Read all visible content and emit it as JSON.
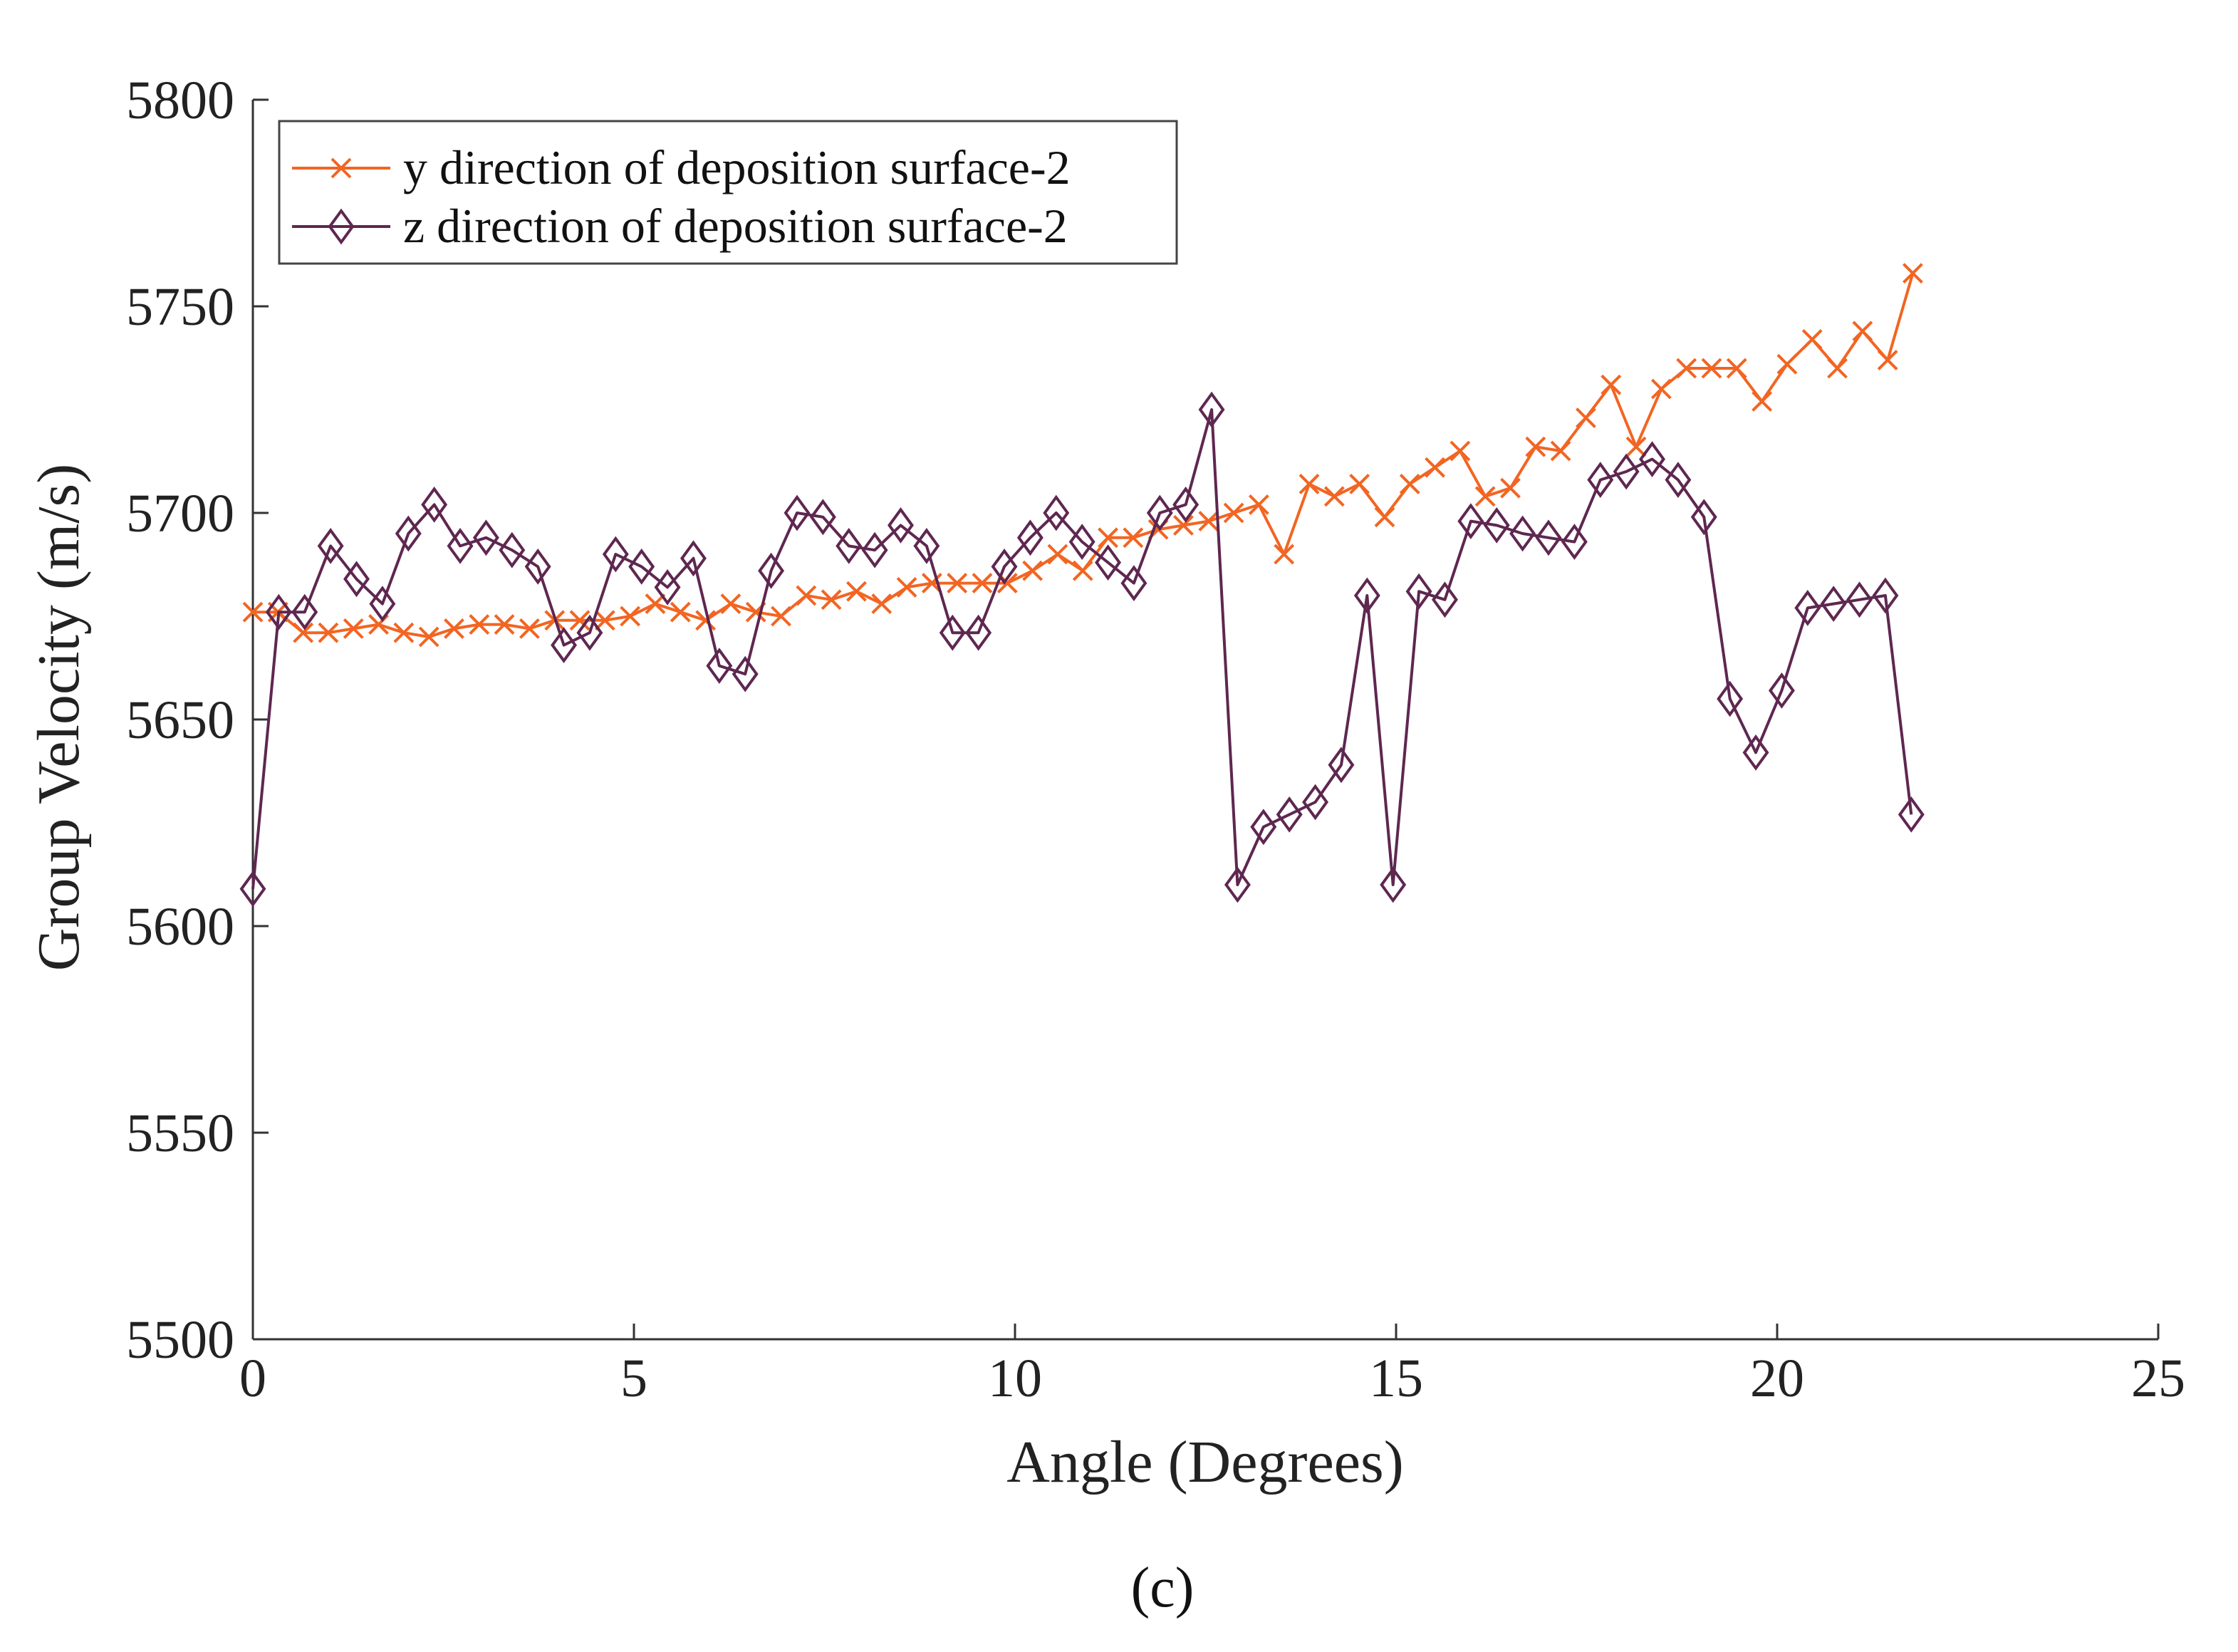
{
  "chart_data": {
    "type": "line",
    "title": "",
    "xlabel": "Angle (Degrees)",
    "ylabel": "Group Velocity (m/s)",
    "xlim": [
      0,
      25
    ],
    "ylim": [
      5500,
      5800
    ],
    "xticks": [
      0,
      5,
      10,
      15,
      20,
      25
    ],
    "yticks": [
      5500,
      5550,
      5600,
      5650,
      5700,
      5750,
      5800
    ],
    "grid": false,
    "legend_position": "top-left",
    "series": [
      {
        "name": "y direction of deposition surface-2",
        "color": "#f26522",
        "marker": "x",
        "x": [
          0,
          0.33,
          0.66,
          0.99,
          1.32,
          1.65,
          1.98,
          2.31,
          2.64,
          2.97,
          3.3,
          3.63,
          3.96,
          4.29,
          4.62,
          4.95,
          5.28,
          5.61,
          5.94,
          6.27,
          6.6,
          6.93,
          7.26,
          7.59,
          7.92,
          8.25,
          8.58,
          8.91,
          9.24,
          9.57,
          9.9,
          10.23,
          10.56,
          10.89,
          11.22,
          11.55,
          11.88,
          12.21,
          12.54,
          12.87,
          13.2,
          13.53,
          13.86,
          14.19,
          14.52,
          14.85,
          15.18,
          15.51,
          15.84,
          16.17,
          16.5,
          16.83,
          17.16,
          17.49,
          17.82,
          18.15,
          18.48,
          18.81,
          19.14,
          19.47,
          19.8,
          20.13,
          20.46,
          20.79,
          21.12,
          21.45,
          21.78
        ],
        "y": [
          5676,
          5676,
          5671,
          5671,
          5672,
          5673,
          5671,
          5670,
          5672,
          5673,
          5673,
          5672,
          5674,
          5674,
          5674,
          5675,
          5678,
          5676,
          5674,
          5678,
          5676,
          5675,
          5680,
          5679,
          5681,
          5678,
          5682,
          5683,
          5683,
          5683,
          5683,
          5686,
          5690,
          5686,
          5694,
          5694,
          5696,
          5697,
          5698,
          5700,
          5702,
          5690,
          5707,
          5704,
          5707,
          5699,
          5707,
          5711,
          5715,
          5704,
          5706,
          5716,
          5715,
          5723,
          5731,
          5716,
          5730,
          5735,
          5735,
          5735,
          5727,
          5736,
          5742,
          5735,
          5744,
          5737,
          5758
        ]
      },
      {
        "name": "z direction of deposition surface-2",
        "color": "#5e2750",
        "marker": "diamond",
        "x": [
          0,
          0.34,
          0.68,
          1.02,
          1.36,
          1.7,
          2.04,
          2.38,
          2.72,
          3.06,
          3.4,
          3.74,
          4.08,
          4.42,
          4.76,
          5.1,
          5.44,
          5.78,
          6.12,
          6.46,
          6.8,
          7.14,
          7.48,
          7.82,
          8.16,
          8.5,
          8.84,
          9.18,
          9.52,
          9.86,
          10.2,
          10.54,
          10.88,
          11.22,
          11.56,
          11.9,
          12.24,
          12.58,
          12.92,
          13.26,
          13.6,
          13.94,
          14.28,
          14.62,
          14.96,
          15.3,
          15.64,
          15.98,
          16.32,
          16.66,
          17.0,
          17.34,
          17.68,
          18.02,
          18.36,
          18.7,
          19.04,
          19.38,
          19.72,
          20.06,
          20.4,
          20.74,
          21.08,
          21.42,
          21.76
        ],
        "y": [
          5609,
          5676,
          5676,
          5692,
          5684,
          5678,
          5695,
          5702,
          5692,
          5694,
          5691,
          5687,
          5668,
          5671,
          5690,
          5687,
          5682,
          5689,
          5663,
          5661,
          5686,
          5700,
          5699,
          5692,
          5691,
          5697,
          5692,
          5671,
          5671,
          5687,
          5694,
          5700,
          5693,
          5688,
          5683,
          5700,
          5702,
          5725,
          5610,
          5624,
          5627,
          5630,
          5639,
          5680,
          5610,
          5681,
          5679,
          5698,
          5697,
          5695,
          5694,
          5693,
          5708,
          5710,
          5713,
          5708,
          5699,
          5655,
          5642,
          5657,
          5677,
          5678,
          5679,
          5680,
          5627
        ]
      }
    ]
  },
  "caption": "(c)"
}
